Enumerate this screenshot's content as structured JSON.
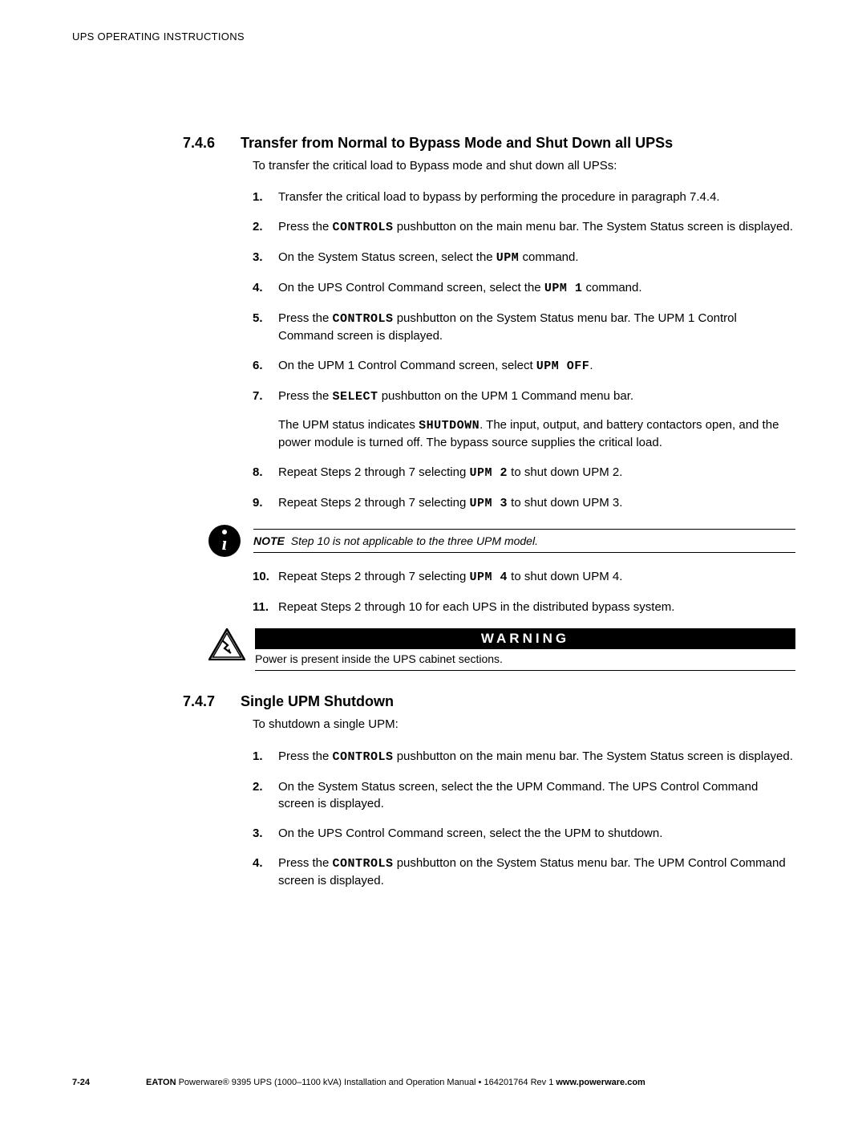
{
  "header": "UPS OPERATING INSTRUCTIONS",
  "section1": {
    "num": "7.4.6",
    "title": "Transfer from Normal to Bypass Mode and Shut Down all UPSs",
    "intro": "To transfer the critical load to Bypass mode and shut down all UPSs:",
    "steps": [
      {
        "pre": "Transfer the critical load to bypass by performing the procedure in paragraph 7.4.4."
      },
      {
        "pre": "Press the ",
        "mono": "CONTROLS",
        "post": " pushbutton on the main menu bar. The System Status screen is displayed."
      },
      {
        "pre": "On the System Status screen, select the ",
        "mono": "UPM",
        "post": " command."
      },
      {
        "pre": "On the UPS Control Command screen, select the ",
        "mono": "UPM 1",
        "post": " command."
      },
      {
        "pre": "Press the ",
        "mono": "CONTROLS",
        "post": " pushbutton on the System Status menu bar. The UPM 1 Control Command screen is displayed."
      },
      {
        "pre": "On the UPM 1 Control Command screen, select ",
        "mono": "UPM OFF",
        "post": "."
      },
      {
        "pre": "Press the ",
        "mono": "SELECT",
        "post": " pushbutton on the UPM 1 Command menu bar."
      }
    ],
    "follow_pre": "The UPM status indicates ",
    "follow_mono": "SHUTDOWN",
    "follow_post": ". The input, output, and battery contactors open, and the power module is turned off. The bypass source supplies the critical load.",
    "steps2": [
      {
        "pre": "Repeat Steps 2 through 7 selecting ",
        "mono": "UPM 2",
        "post": " to shut down UPM 2."
      },
      {
        "pre": "Repeat Steps 2 through 7 selecting ",
        "mono": "UPM 3",
        "post": " to shut down UPM 3."
      }
    ],
    "note_label": "NOTE",
    "note_text": "Step 10 is not applicable to the three UPM model.",
    "steps3": [
      {
        "pre": "Repeat Steps 2 through 7 selecting ",
        "mono": "UPM 4",
        "post": " to shut down UPM 4."
      },
      {
        "pre": "Repeat Steps 2 through 10 for each UPS in the distributed bypass system."
      }
    ],
    "warning_title": "WARNING",
    "warning_text": "Power is present inside the UPS cabinet sections."
  },
  "section2": {
    "num": "7.4.7",
    "title": "Single UPM Shutdown",
    "intro": "To shutdown a single UPM:",
    "steps": [
      {
        "pre": "Press the ",
        "mono": "CONTROLS",
        "post": " pushbutton on the main menu bar. The System Status screen is displayed."
      },
      {
        "pre": "On the System Status screen, select the the UPM Command. The UPS Control Command screen is displayed."
      },
      {
        "pre": "On the UPS Control Command screen, select the the UPM to shutdown."
      },
      {
        "pre": "Press the ",
        "mono": "CONTROLS",
        "post": " pushbutton on the System Status menu bar. The UPM Control Command screen is displayed."
      }
    ]
  },
  "footer": {
    "page": "7-24",
    "brand": "EATON",
    "mid": " Powerware® 9395 UPS (1000–1100 kVA) Installation and Operation Manual  •  164201764 Rev 1 ",
    "url": "www.powerware.com"
  }
}
